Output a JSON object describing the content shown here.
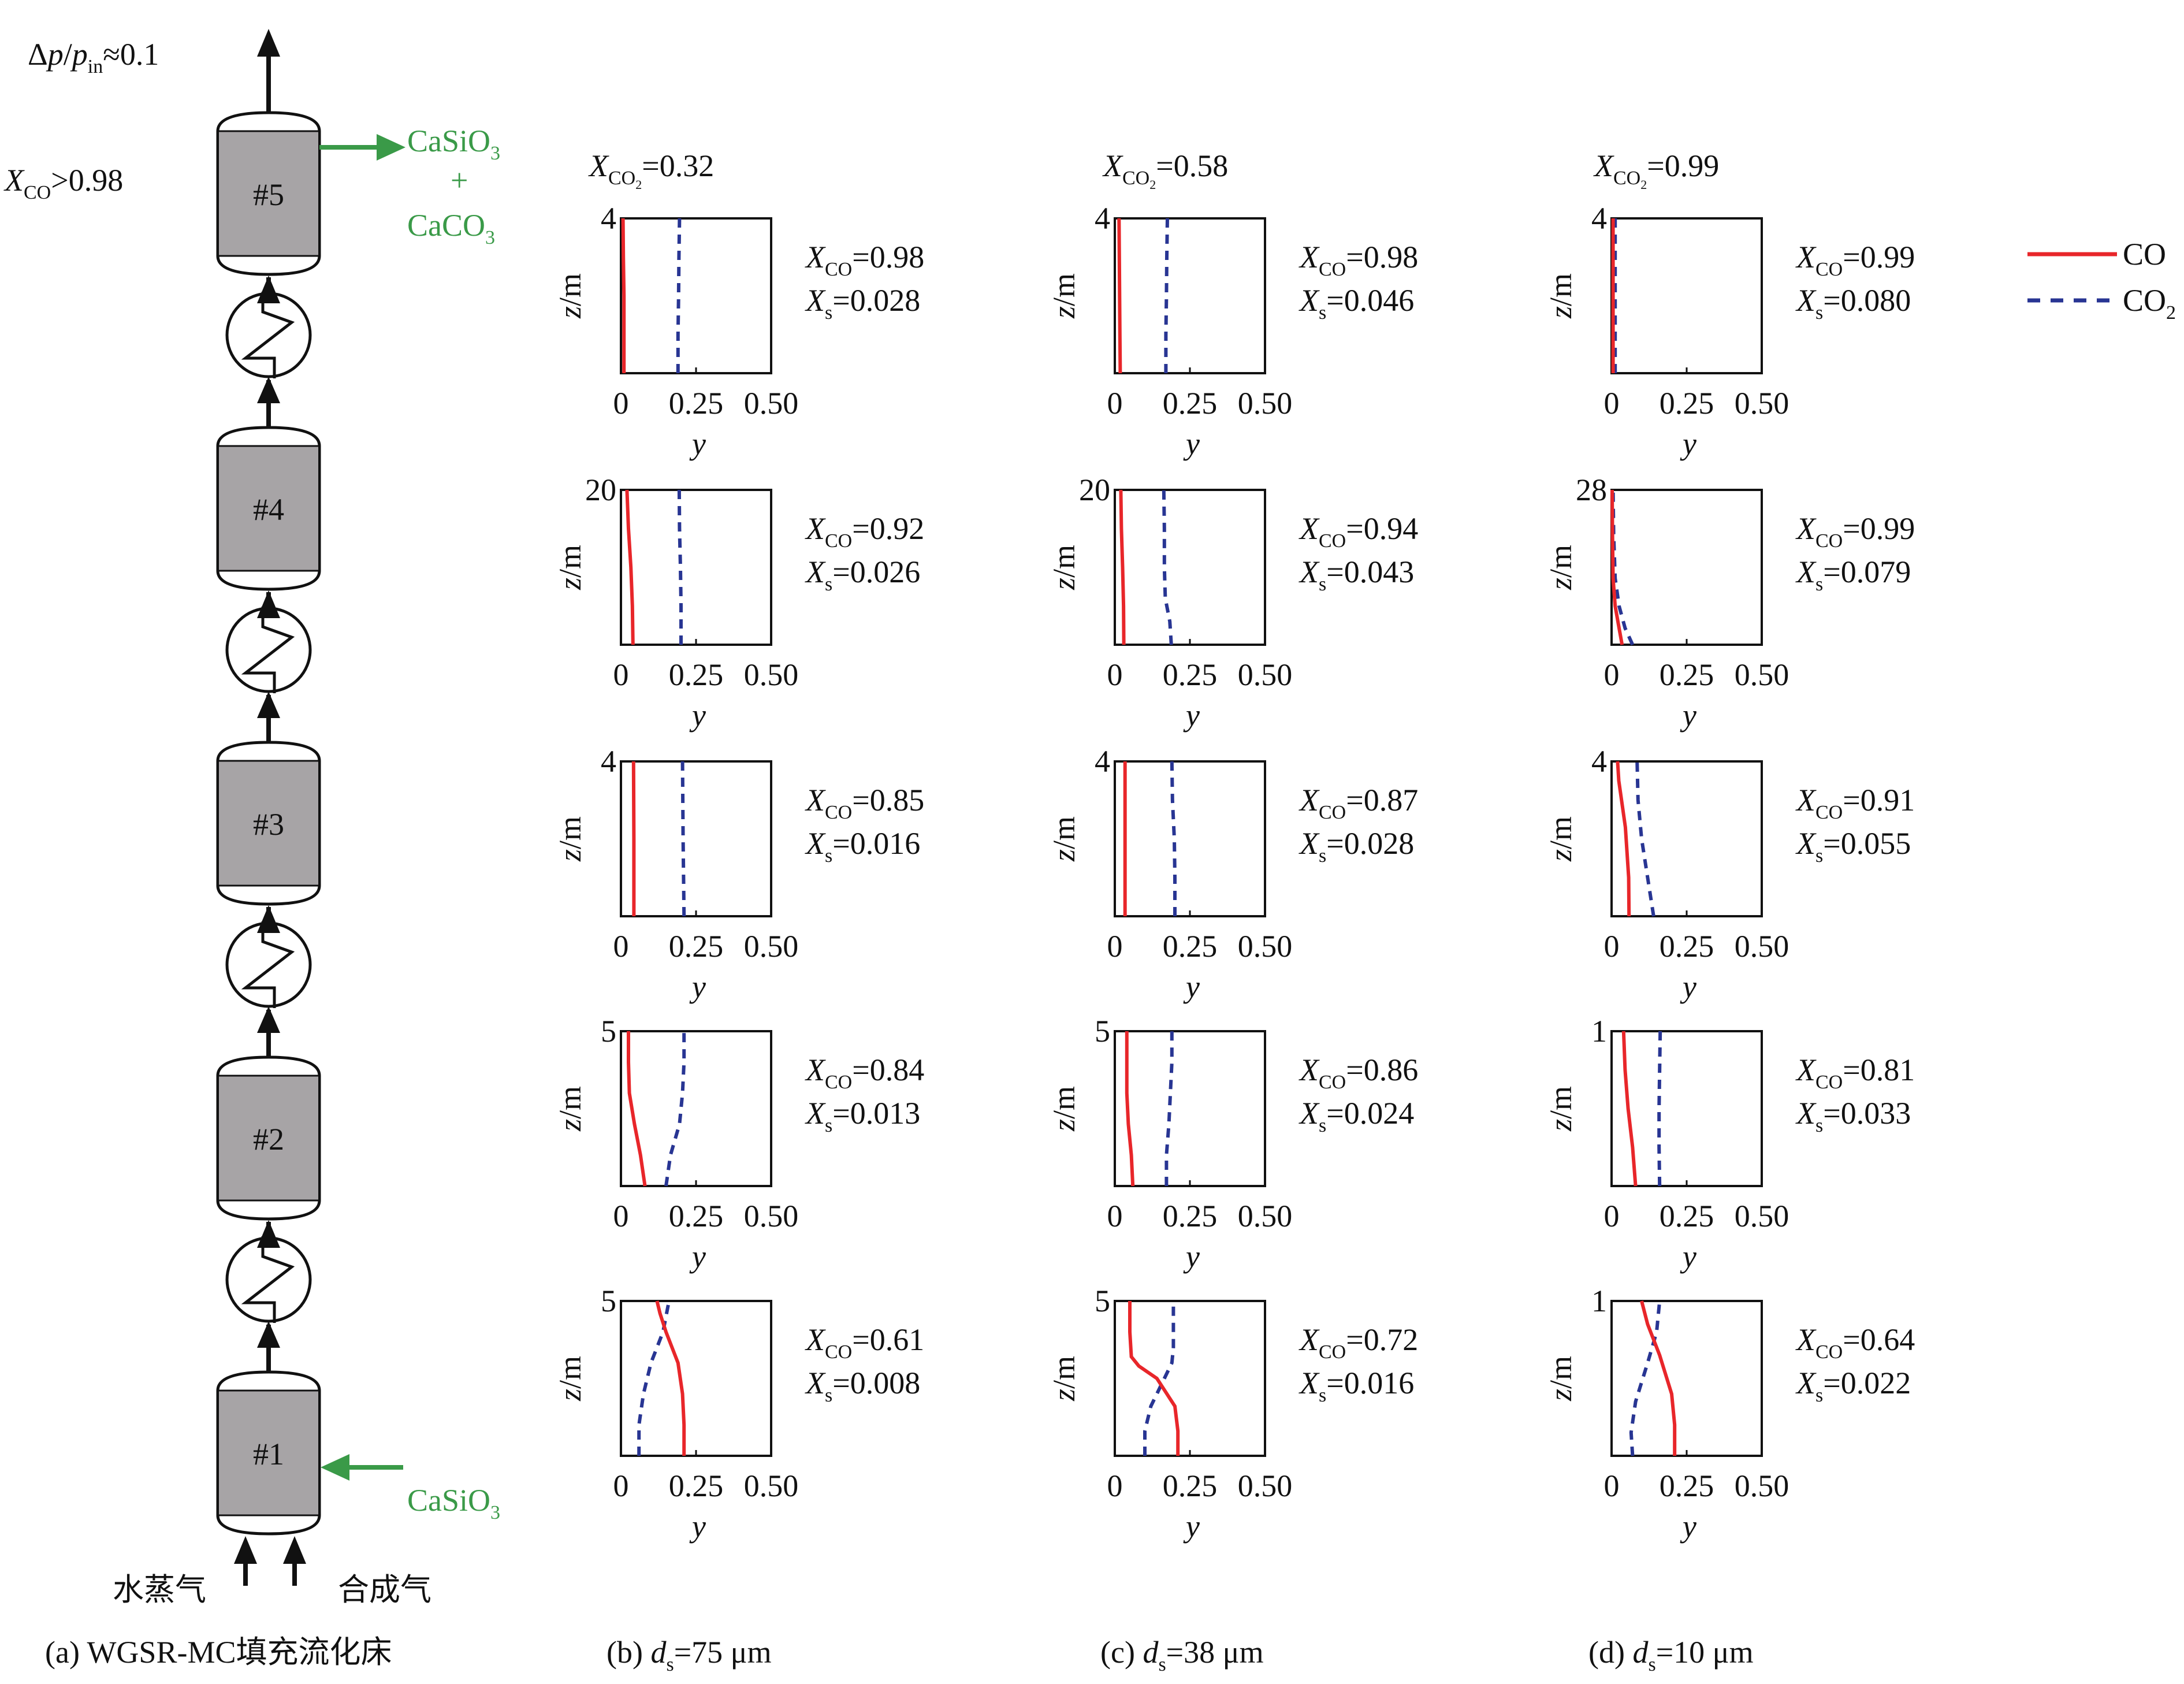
{
  "colors": {
    "co": "#e8262a",
    "co2": "#283593",
    "green": "#3a9a48",
    "vessel_fill": "#a7a4a6"
  },
  "schematic": {
    "pressure_ratio": {
      "delta": "Δ",
      "p": "p",
      "slash": "/",
      "p2": "p",
      "sub": "in",
      "rest": "≈0.1"
    },
    "conversion": {
      "x": "X",
      "sub": "CO",
      "rest": ">0.98"
    },
    "outlet": {
      "line1_main": "CaSiO",
      "line1_sub": "3",
      "plus": "+",
      "line3_main": "CaCO",
      "line3_sub": "3"
    },
    "inlet": {
      "main": "CaSiO",
      "sub": "3"
    },
    "reactors": [
      "#5",
      "#4",
      "#3",
      "#2",
      "#1"
    ],
    "feeds": {
      "steam": "水蒸气",
      "syngas": "合成气"
    },
    "caption": "(a) WGSR-MC填充流化床"
  },
  "legend": {
    "items": [
      {
        "name": "CO",
        "sub": "",
        "style": "solid",
        "color": "#e8262a"
      },
      {
        "name": "CO",
        "sub": "2",
        "style": "dashed",
        "color": "#283593"
      }
    ]
  },
  "axis_labels": {
    "z": "z/m",
    "y": "y"
  },
  "columns": [
    {
      "header": {
        "x": "X",
        "sub": "CO",
        "subsub": "2",
        "value": "=0.32"
      },
      "caption": {
        "prefix": "(b) ",
        "d": "d",
        "sub": "s",
        "value": "=75 μm"
      }
    },
    {
      "header": {
        "x": "X",
        "sub": "CO",
        "subsub": "2",
        "value": "=0.58"
      },
      "caption": {
        "prefix": "(c) ",
        "d": "d",
        "sub": "s",
        "value": "=38 μm"
      }
    },
    {
      "header": {
        "x": "X",
        "sub": "CO",
        "subsub": "2",
        "value": "=0.99"
      },
      "caption": {
        "prefix": "(d) ",
        "d": "d",
        "sub": "s",
        "value": "=10 μm"
      }
    }
  ],
  "chart_data": {
    "type": "line",
    "description_axes": "each panel: x axis y (mole fraction, 0 to 0.50), y axis z/m (bed height)",
    "xlim": [
      0,
      0.5
    ],
    "xticks": [
      "0",
      "0.25",
      "0.50"
    ],
    "panels": [
      {
        "column": 0,
        "reactor": "#5",
        "zmax": 4,
        "ztick": "4",
        "xco": "=0.98",
        "xs": "=0.028",
        "co": [
          [
            0.01,
            0
          ],
          [
            0.01,
            1
          ],
          [
            0.01,
            2
          ],
          [
            0.008,
            3
          ],
          [
            0.007,
            4
          ]
        ],
        "co2": [
          [
            0.19,
            0
          ],
          [
            0.19,
            1
          ],
          [
            0.192,
            2
          ],
          [
            0.193,
            3
          ],
          [
            0.195,
            4
          ]
        ]
      },
      {
        "column": 1,
        "reactor": "#5",
        "zmax": 4,
        "ztick": "4",
        "xco": "=0.98",
        "xs": "=0.046",
        "co": [
          [
            0.018,
            0
          ],
          [
            0.017,
            1
          ],
          [
            0.016,
            2
          ],
          [
            0.015,
            3
          ],
          [
            0.014,
            4
          ]
        ],
        "co2": [
          [
            0.17,
            0
          ],
          [
            0.17,
            1
          ],
          [
            0.172,
            2
          ],
          [
            0.173,
            3
          ],
          [
            0.175,
            4
          ]
        ]
      },
      {
        "column": 2,
        "reactor": "#5",
        "zmax": 4,
        "ztick": "4",
        "xco": "=0.99",
        "xs": "=0.080",
        "co": [
          [
            0.005,
            0
          ],
          [
            0.005,
            2
          ],
          [
            0.005,
            4
          ]
        ],
        "co2": [
          [
            0.012,
            0
          ],
          [
            0.012,
            2
          ],
          [
            0.012,
            4
          ]
        ]
      },
      {
        "column": 0,
        "reactor": "#4",
        "zmax": 20,
        "ztick": "20",
        "xco": "=0.92",
        "xs": "=0.026",
        "co": [
          [
            0.04,
            0
          ],
          [
            0.038,
            5
          ],
          [
            0.033,
            10
          ],
          [
            0.025,
            15
          ],
          [
            0.02,
            20
          ]
        ],
        "co2": [
          [
            0.2,
            0
          ],
          [
            0.2,
            5
          ],
          [
            0.198,
            10
          ],
          [
            0.195,
            15
          ],
          [
            0.194,
            20
          ]
        ]
      },
      {
        "column": 1,
        "reactor": "#4",
        "zmax": 20,
        "ztick": "20",
        "xco": "=0.94",
        "xs": "=0.043",
        "co": [
          [
            0.03,
            0
          ],
          [
            0.029,
            5
          ],
          [
            0.026,
            10
          ],
          [
            0.022,
            15
          ],
          [
            0.02,
            20
          ]
        ],
        "co2": [
          [
            0.188,
            0
          ],
          [
            0.183,
            3
          ],
          [
            0.168,
            6
          ],
          [
            0.165,
            10
          ],
          [
            0.165,
            15
          ],
          [
            0.163,
            20
          ]
        ]
      },
      {
        "column": 2,
        "reactor": "#4",
        "zmax": 28,
        "ztick": "28",
        "xco": "=0.99",
        "xs": "=0.079",
        "co": [
          [
            0.035,
            0
          ],
          [
            0.025,
            3
          ],
          [
            0.012,
            7
          ],
          [
            0.005,
            12
          ],
          [
            0.003,
            20
          ],
          [
            0.002,
            28
          ]
        ],
        "co2": [
          [
            0.07,
            0
          ],
          [
            0.045,
            3
          ],
          [
            0.025,
            7
          ],
          [
            0.012,
            12
          ],
          [
            0.007,
            20
          ],
          [
            0.005,
            28
          ]
        ]
      },
      {
        "column": 0,
        "reactor": "#3",
        "zmax": 4,
        "ztick": "4",
        "xco": "=0.85",
        "xs": "=0.016",
        "co": [
          [
            0.043,
            0
          ],
          [
            0.043,
            2
          ],
          [
            0.042,
            4
          ]
        ],
        "co2": [
          [
            0.21,
            0
          ],
          [
            0.207,
            2
          ],
          [
            0.205,
            4
          ]
        ]
      },
      {
        "column": 1,
        "reactor": "#3",
        "zmax": 4,
        "ztick": "4",
        "xco": "=0.87",
        "xs": "=0.028",
        "co": [
          [
            0.034,
            0
          ],
          [
            0.034,
            2
          ],
          [
            0.034,
            4
          ]
        ],
        "co2": [
          [
            0.2,
            0
          ],
          [
            0.2,
            1
          ],
          [
            0.198,
            2
          ],
          [
            0.192,
            3
          ],
          [
            0.19,
            4
          ]
        ]
      },
      {
        "column": 2,
        "reactor": "#3",
        "zmax": 4,
        "ztick": "4",
        "xco": "=0.91",
        "xs": "=0.055",
        "co": [
          [
            0.058,
            0
          ],
          [
            0.057,
            1
          ],
          [
            0.046,
            2.3
          ],
          [
            0.024,
            3.5
          ],
          [
            0.02,
            4
          ]
        ],
        "co2": [
          [
            0.14,
            0
          ],
          [
            0.12,
            1
          ],
          [
            0.1,
            2
          ],
          [
            0.088,
            3
          ],
          [
            0.085,
            4
          ]
        ]
      },
      {
        "column": 0,
        "reactor": "#2",
        "zmax": 5,
        "ztick": "5",
        "xco": "=0.84",
        "xs": "=0.013",
        "co": [
          [
            0.08,
            0
          ],
          [
            0.065,
            1
          ],
          [
            0.045,
            2
          ],
          [
            0.028,
            3
          ],
          [
            0.025,
            4
          ],
          [
            0.025,
            5
          ]
        ],
        "co2": [
          [
            0.15,
            0
          ],
          [
            0.165,
            1
          ],
          [
            0.195,
            2
          ],
          [
            0.205,
            3
          ],
          [
            0.21,
            4
          ],
          [
            0.21,
            5
          ]
        ]
      },
      {
        "column": 1,
        "reactor": "#2",
        "zmax": 5,
        "ztick": "5",
        "xco": "=0.86",
        "xs": "=0.024",
        "co": [
          [
            0.06,
            0
          ],
          [
            0.055,
            1
          ],
          [
            0.045,
            2
          ],
          [
            0.04,
            3
          ],
          [
            0.04,
            4
          ],
          [
            0.04,
            5
          ]
        ],
        "co2": [
          [
            0.172,
            0
          ],
          [
            0.172,
            1
          ],
          [
            0.18,
            2
          ],
          [
            0.185,
            3
          ],
          [
            0.19,
            4
          ],
          [
            0.19,
            5
          ]
        ]
      },
      {
        "column": 2,
        "reactor": "#2",
        "zmax": 1,
        "ztick": "1",
        "xco": "=0.81",
        "xs": "=0.033",
        "co": [
          [
            0.08,
            0
          ],
          [
            0.07,
            0.25
          ],
          [
            0.055,
            0.5
          ],
          [
            0.045,
            0.75
          ],
          [
            0.04,
            1
          ]
        ],
        "co2": [
          [
            0.16,
            0
          ],
          [
            0.158,
            0.25
          ],
          [
            0.158,
            0.5
          ],
          [
            0.16,
            0.75
          ],
          [
            0.162,
            1
          ]
        ]
      },
      {
        "column": 0,
        "reactor": "#1",
        "zmax": 5,
        "ztick": "5",
        "xco": "=0.61",
        "xs": "=0.008",
        "co": [
          [
            0.21,
            0
          ],
          [
            0.21,
            1
          ],
          [
            0.205,
            2
          ],
          [
            0.19,
            3
          ],
          [
            0.15,
            4
          ],
          [
            0.13,
            4.6
          ],
          [
            0.12,
            5
          ]
        ],
        "co2": [
          [
            0.06,
            0
          ],
          [
            0.06,
            1
          ],
          [
            0.075,
            2
          ],
          [
            0.1,
            3
          ],
          [
            0.14,
            4
          ],
          [
            0.16,
            5
          ]
        ]
      },
      {
        "column": 1,
        "reactor": "#1",
        "zmax": 5,
        "ztick": "5",
        "xco": "=0.72",
        "xs": "=0.016",
        "co": [
          [
            0.21,
            0
          ],
          [
            0.21,
            0.8
          ],
          [
            0.2,
            1.6
          ],
          [
            0.14,
            2.5
          ],
          [
            0.08,
            2.9
          ],
          [
            0.055,
            3.2
          ],
          [
            0.05,
            4
          ],
          [
            0.05,
            5
          ]
        ],
        "co2": [
          [
            0.1,
            0
          ],
          [
            0.1,
            0.8
          ],
          [
            0.12,
            1.6
          ],
          [
            0.16,
            2.4
          ],
          [
            0.19,
            3
          ],
          [
            0.195,
            3.5
          ],
          [
            0.195,
            5
          ]
        ]
      },
      {
        "column": 2,
        "reactor": "#1",
        "zmax": 1,
        "ztick": "1",
        "xco": "=0.64",
        "xs": "=0.022",
        "co": [
          [
            0.21,
            0
          ],
          [
            0.21,
            0.2
          ],
          [
            0.2,
            0.4
          ],
          [
            0.16,
            0.65
          ],
          [
            0.12,
            0.85
          ],
          [
            0.1,
            1
          ]
        ],
        "co2": [
          [
            0.07,
            0
          ],
          [
            0.065,
            0.15
          ],
          [
            0.08,
            0.35
          ],
          [
            0.12,
            0.6
          ],
          [
            0.15,
            0.8
          ],
          [
            0.16,
            1
          ]
        ]
      }
    ]
  }
}
